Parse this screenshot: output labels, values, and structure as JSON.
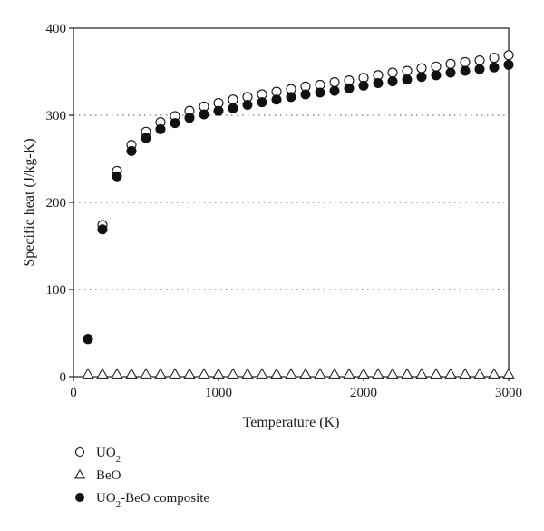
{
  "chart_data": {
    "type": "scatter",
    "title": "",
    "xlabel": "Temperature (K)",
    "ylabel": "Specific heat (J/kg-K)",
    "xlim": [
      0,
      3000
    ],
    "ylim": [
      0,
      400
    ],
    "xticks": [
      0,
      1000,
      2000,
      3000
    ],
    "yticks": [
      0,
      100,
      200,
      300,
      400
    ],
    "grid": "horizontal dotted",
    "legend_position": "bottom-left",
    "x": [
      100,
      200,
      300,
      400,
      500,
      600,
      700,
      800,
      900,
      1000,
      1100,
      1200,
      1300,
      1400,
      1500,
      1600,
      1700,
      1800,
      1900,
      2000,
      2100,
      2200,
      2300,
      2400,
      2500,
      2600,
      2700,
      2800,
      2900,
      3000
    ],
    "series": [
      {
        "name": "UO2",
        "label_main": "UO",
        "label_sub": "2",
        "label_tail": "",
        "marker": "open-circle",
        "values": [
          43,
          174,
          236,
          266,
          281,
          292,
          299,
          305,
          310,
          314,
          318,
          321,
          324,
          327,
          330,
          333,
          335,
          338,
          340,
          343,
          346,
          349,
          351,
          354,
          356,
          359,
          361,
          363,
          366,
          369
        ]
      },
      {
        "name": "BeO",
        "label_main": "BeO",
        "label_sub": "",
        "label_tail": "",
        "marker": "open-triangle",
        "values": [
          3,
          3,
          3,
          3,
          3,
          3,
          3,
          3,
          3,
          3,
          3,
          3,
          3,
          3,
          3,
          3,
          3,
          3,
          3,
          3,
          3,
          3,
          3,
          3,
          3,
          3,
          3,
          3,
          3,
          3
        ]
      },
      {
        "name": "UO2-BeO composite",
        "label_main": "UO",
        "label_sub": "2",
        "label_tail": "-BeO composite",
        "marker": "filled-circle",
        "values": [
          43,
          169,
          230,
          259,
          274,
          284,
          291,
          297,
          301,
          305,
          308,
          312,
          315,
          318,
          321,
          324,
          326,
          328,
          331,
          334,
          337,
          339,
          341,
          344,
          346,
          349,
          351,
          353,
          355,
          358
        ]
      }
    ]
  },
  "colors": {
    "marker": "#111111",
    "axis": "#1a1a1a",
    "grid": "#555555"
  }
}
